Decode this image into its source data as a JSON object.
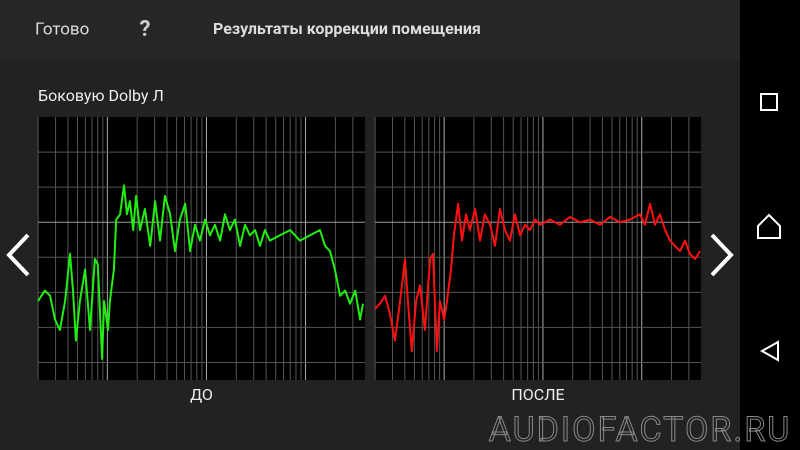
{
  "header": {
    "done": "Готово",
    "help": "?",
    "title": "Результаты коррекции помещения"
  },
  "channel": "Боковую Dolby Л",
  "charts": [
    {
      "type": "line",
      "label": "ДО",
      "color": "#22ee11",
      "xlim": [
        0,
        100
      ],
      "ylim": [
        0,
        100
      ],
      "x": [
        0,
        2.1,
        3.7,
        5.2,
        6.7,
        8.3,
        9.8,
        10.7,
        11.6,
        12.8,
        14.4,
        15.9,
        17.4,
        18.3,
        19.6,
        20.2,
        21.4,
        22,
        23.2,
        23.9,
        25.1,
        26.3,
        27.2,
        28.1,
        29.1,
        30,
        31.2,
        32.7,
        34.3,
        35.8,
        37.3,
        38.8,
        40.4,
        41.9,
        43.4,
        45,
        46.5,
        48,
        49.5,
        51.1,
        52.6,
        54.1,
        55.7,
        57.2,
        58.7,
        60.2,
        61.8,
        63.3,
        64.8,
        66.4,
        67.9,
        69.4,
        70.9,
        74,
        77.1,
        80.1,
        83.2,
        86.2,
        87.8,
        89.3,
        90.8,
        92.4,
        93.9,
        95.4,
        97,
        98.5,
        99.4
      ],
      "values": [
        30,
        34,
        32,
        23,
        19,
        30,
        48,
        34,
        15,
        30,
        42,
        19,
        46,
        44,
        8,
        30,
        19,
        30,
        42,
        61,
        63,
        74,
        63,
        68,
        57,
        70,
        57,
        65,
        51,
        68,
        53,
        70,
        63,
        49,
        61,
        67,
        49,
        59,
        53,
        61,
        55,
        59,
        53,
        63,
        57,
        61,
        51,
        59,
        55,
        57,
        51,
        57,
        53,
        55,
        57,
        53,
        55,
        57,
        51,
        49,
        42,
        32,
        34,
        29,
        34,
        23,
        29
      ]
    },
    {
      "type": "line",
      "label": "ПОСЛЕ",
      "color": "#ff1010",
      "xlim": [
        0,
        100
      ],
      "ylim": [
        0,
        100
      ],
      "x": [
        0,
        1.5,
        3.1,
        4.6,
        6.1,
        7.7,
        9.2,
        10.1,
        11.3,
        12.6,
        13.8,
        15.3,
        16.9,
        17.8,
        19,
        19.9,
        21.2,
        22.1,
        23.3,
        24.2,
        25.5,
        26.7,
        27.9,
        29.1,
        30.7,
        32.2,
        33.7,
        35.3,
        36.8,
        38.3,
        39.9,
        41.4,
        42.9,
        44.5,
        46,
        47.5,
        49.1,
        50.6,
        53.7,
        56.7,
        59.8,
        62.9,
        66,
        69,
        72.1,
        75.2,
        78.2,
        81.3,
        82.8,
        84.4,
        85.9,
        87.4,
        89,
        90.5,
        92,
        93.6,
        95.1,
        96.6,
        98.2,
        99.7
      ],
      "values": [
        27,
        29,
        32,
        25,
        15,
        30,
        46,
        30,
        11,
        30,
        36,
        19,
        46,
        48,
        11,
        30,
        23,
        30,
        42,
        55,
        67,
        53,
        63,
        57,
        65,
        53,
        63,
        59,
        51,
        65,
        57,
        53,
        63,
        55,
        59,
        57,
        61,
        59,
        61,
        59,
        62,
        60,
        61,
        59,
        62,
        60,
        61,
        63,
        59,
        67,
        59,
        63,
        57,
        53,
        51,
        49,
        53,
        48,
        46,
        49
      ]
    }
  ],
  "watermark": "AUDIOFACTOR.RU"
}
